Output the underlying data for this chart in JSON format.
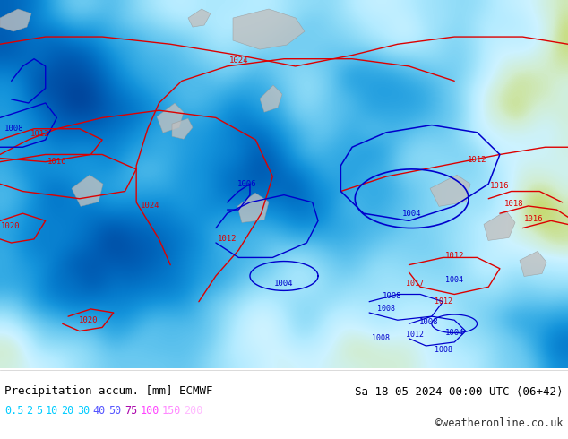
{
  "title_left": "Precipitation accum. [mm] ECMWF",
  "title_right": "Sa 18-05-2024 00:00 UTC ⟨06+42⟩",
  "credit": "©weatheronline.co.uk",
  "legend_values": [
    "0.5",
    "2",
    "5",
    "10",
    "20",
    "30",
    "40",
    "50",
    "75",
    "100",
    "150",
    "200"
  ],
  "legend_colors_cyan": [
    "#00ccff",
    "#00ccff",
    "#00ccff",
    "#00ccff",
    "#00ccff",
    "#00ccff",
    "#6666ff",
    "#6666ff"
  ],
  "legend_colors_pink": [
    "#cc00cc",
    "#ff66ff",
    "#ff99ff",
    "#ffccff"
  ],
  "bg_color": "#ffffff",
  "land_color": "#c8dc78",
  "gray_land": "#c8c8c8",
  "sea_no_precip": "#e0f8f0",
  "precip_lightest": "#c0eef8",
  "precip_light": "#90d8f0",
  "precip_medium": "#60c0e8",
  "precip_strong": "#38a8e0",
  "precip_heavy": "#1890d8",
  "precip_intense": "#0078c8",
  "title_color": "#000000",
  "title_fontsize": 9,
  "red_contour": "#dd0000",
  "blue_contour": "#0000cc",
  "contour_lw": 1.0,
  "label_fontsize": 6.5
}
